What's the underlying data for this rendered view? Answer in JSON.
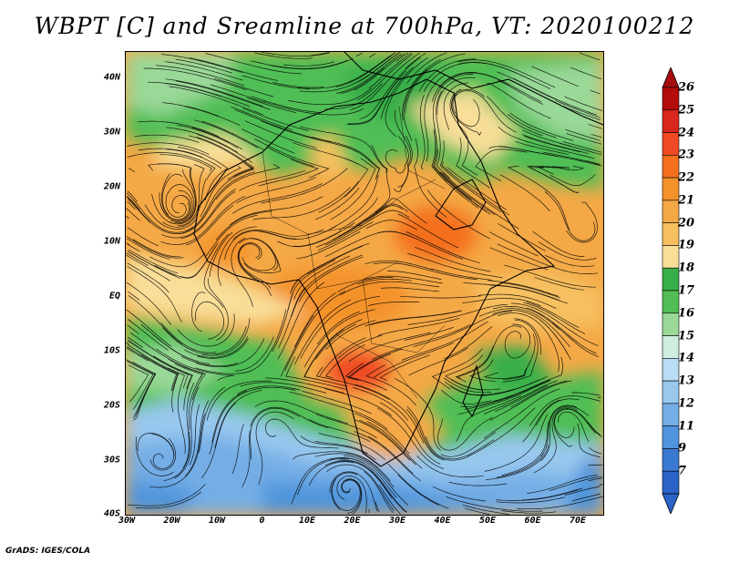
{
  "title": "WBPT [C] and Sreamline at 700hPa, VT: 2020100212",
  "credit": "GrADS: IGES/COLA",
  "map": {
    "lat_labels": [
      "40N",
      "30N",
      "20N",
      "10N",
      "EQ",
      "10S",
      "20S",
      "30S",
      "40S"
    ],
    "lon_labels": [
      "30W",
      "20W",
      "10W",
      "0",
      "10E",
      "20E",
      "30E",
      "40E",
      "50E",
      "60E",
      "70E"
    ],
    "lat_range": [
      -40,
      45
    ],
    "lon_range": [
      -30,
      77
    ],
    "variable": "Wet-bulb potential temperature (filled) with 700 hPa streamlines",
    "level": "700hPa",
    "valid_time": "2020100212"
  },
  "colorbar": {
    "labels": [
      "26",
      "25",
      "24",
      "23",
      "22",
      "21",
      "20",
      "19",
      "18",
      "17",
      "16",
      "15",
      "14",
      "13",
      "12",
      "11",
      "9",
      "7"
    ],
    "colors": [
      "#b40c0c",
      "#d8271c",
      "#f04a24",
      "#f4701c",
      "#f4922a",
      "#f4a846",
      "#f6c060",
      "#f8de98",
      "#38ae4a",
      "#50be54",
      "#9ad898",
      "#d0eee0",
      "#b8dcf4",
      "#98c8ee",
      "#74aee6",
      "#4f94dc",
      "#3a7ad2",
      "#2b63c8"
    ],
    "top_arrow_color": "#a50d0d",
    "bottom_arrow_color": "#2b63c8"
  }
}
